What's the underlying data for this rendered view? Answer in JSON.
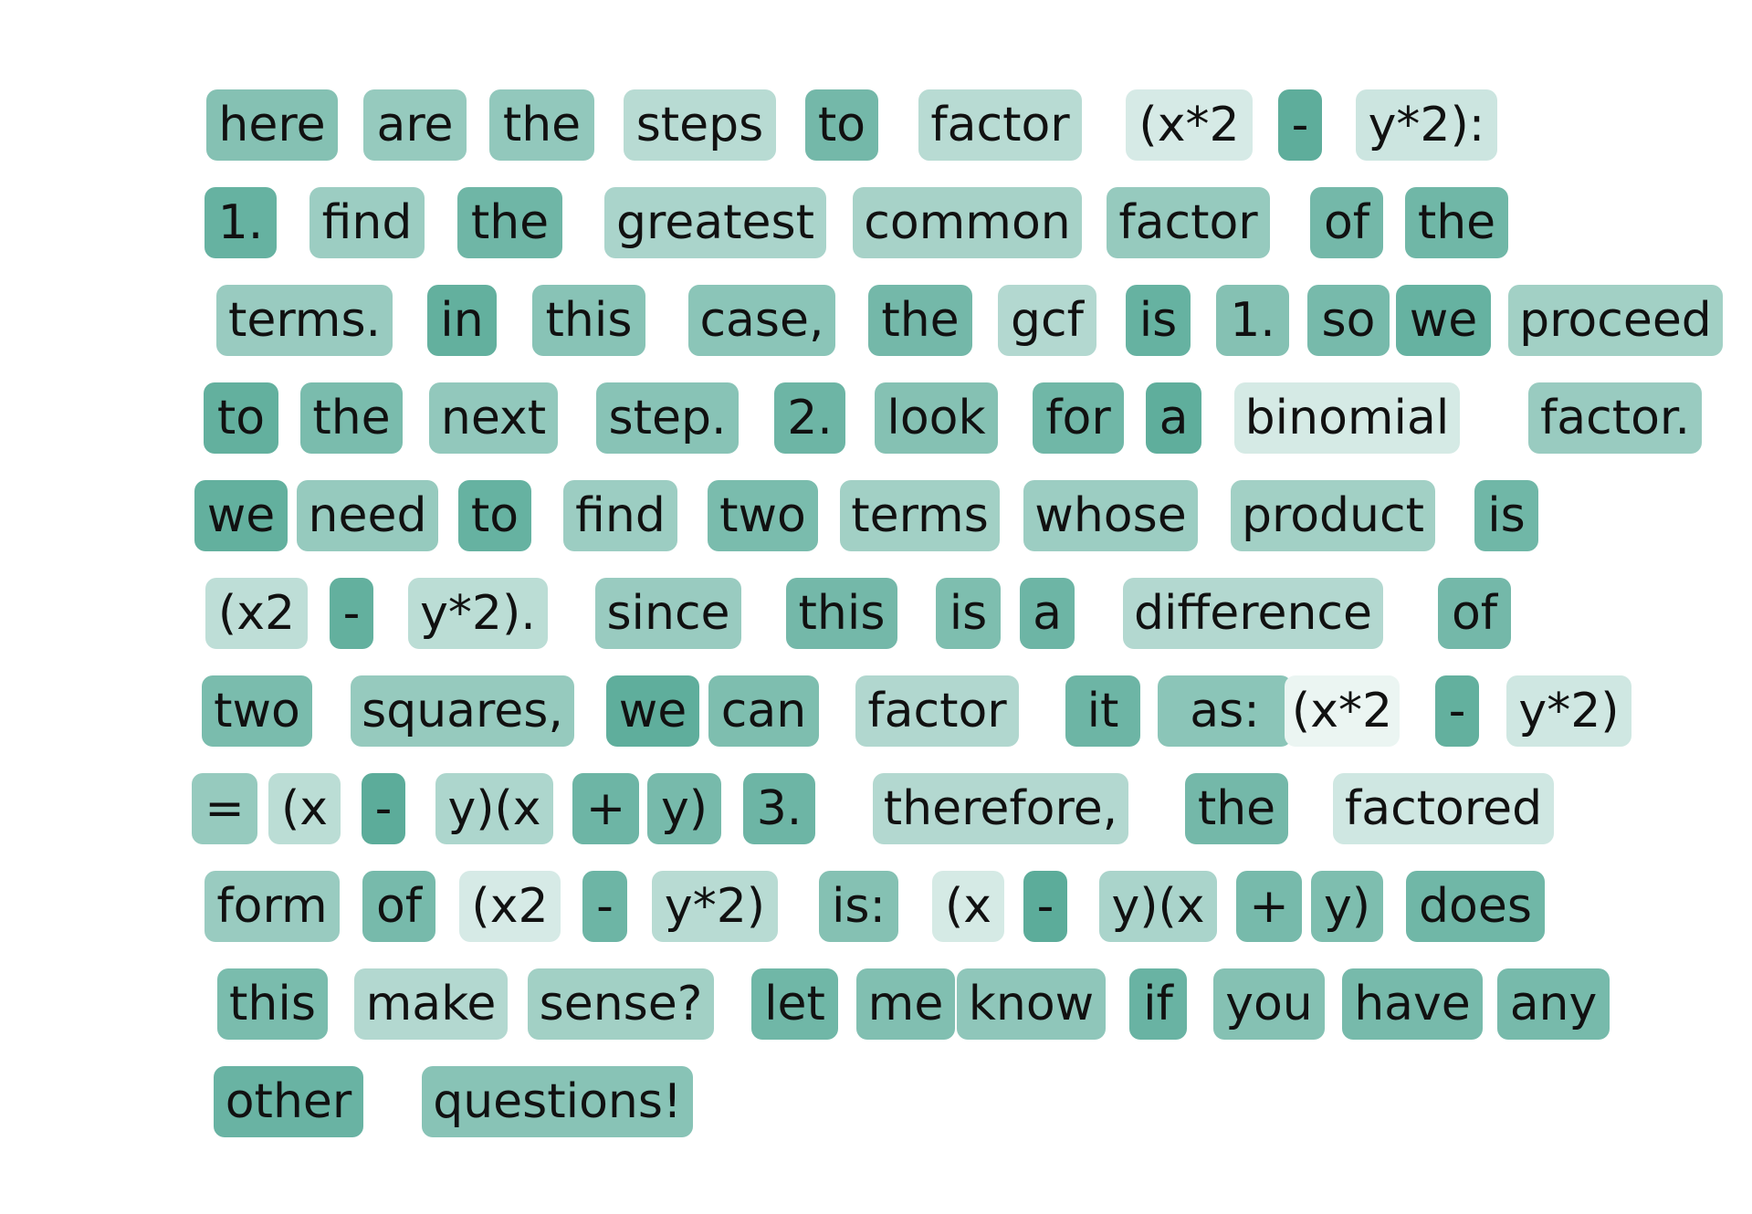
{
  "palette": {
    "base_color": "#55a996",
    "background": "#ffffff"
  },
  "lines": [
    {
      "tokens": [
        {
          "text": "here",
          "weight": 0.72
        },
        {
          "text": "are",
          "weight": 0.62
        },
        {
          "text": "the",
          "weight": 0.64
        },
        {
          "text": "steps",
          "weight": 0.42
        },
        {
          "text": "to",
          "weight": 0.82
        },
        {
          "text": "factor",
          "weight": 0.42
        },
        {
          "text": "(x*2",
          "weight": 0.24
        },
        {
          "text": "-",
          "weight": 0.95
        },
        {
          "text": "y*2):",
          "weight": 0.3
        }
      ]
    },
    {
      "tokens": [
        {
          "text": "1.",
          "weight": 0.9
        },
        {
          "text": "find",
          "weight": 0.58
        },
        {
          "text": "the",
          "weight": 0.85
        },
        {
          "text": "greatest",
          "weight": 0.5
        },
        {
          "text": "common",
          "weight": 0.52
        },
        {
          "text": "factor",
          "weight": 0.62
        },
        {
          "text": "of",
          "weight": 0.82
        },
        {
          "text": "the",
          "weight": 0.84
        }
      ]
    },
    {
      "tokens": [
        {
          "text": "terms.",
          "weight": 0.6
        },
        {
          "text": "in",
          "weight": 0.92
        },
        {
          "text": "this",
          "weight": 0.7
        },
        {
          "text": "case,",
          "weight": 0.68
        },
        {
          "text": "the",
          "weight": 0.82
        },
        {
          "text": "gcf",
          "weight": 0.45
        },
        {
          "text": "is",
          "weight": 0.9
        },
        {
          "text": "1.",
          "weight": 0.72
        },
        {
          "text": "so",
          "weight": 0.8
        },
        {
          "text": "we",
          "weight": 0.9
        },
        {
          "text": "proceed",
          "weight": 0.55
        }
      ]
    },
    {
      "tokens": [
        {
          "text": "to",
          "weight": 0.92
        },
        {
          "text": "the",
          "weight": 0.78
        },
        {
          "text": "next",
          "weight": 0.64
        },
        {
          "text": "step.",
          "weight": 0.7
        },
        {
          "text": "2.",
          "weight": 0.86
        },
        {
          "text": "look",
          "weight": 0.72
        },
        {
          "text": "for",
          "weight": 0.84
        },
        {
          "text": "a",
          "weight": 0.94
        },
        {
          "text": "binomial",
          "weight": 0.25
        },
        {
          "text": "factor.",
          "weight": 0.6
        }
      ]
    },
    {
      "tokens": [
        {
          "text": "we",
          "weight": 0.92
        },
        {
          "text": "need",
          "weight": 0.62
        },
        {
          "text": "to",
          "weight": 0.9
        },
        {
          "text": "find",
          "weight": 0.58
        },
        {
          "text": "two",
          "weight": 0.78
        },
        {
          "text": "terms",
          "weight": 0.55
        },
        {
          "text": "whose",
          "weight": 0.58
        },
        {
          "text": "product",
          "weight": 0.55
        },
        {
          "text": "is",
          "weight": 0.84
        }
      ]
    },
    {
      "tokens": [
        {
          "text": "(x2",
          "weight": 0.38
        },
        {
          "text": "-",
          "weight": 0.92
        },
        {
          "text": "y*2).",
          "weight": 0.4
        },
        {
          "text": "since",
          "weight": 0.6
        },
        {
          "text": "this",
          "weight": 0.82
        },
        {
          "text": "is",
          "weight": 0.76
        },
        {
          "text": "a",
          "weight": 0.86
        },
        {
          "text": "difference",
          "weight": 0.45
        },
        {
          "text": "of",
          "weight": 0.82
        }
      ]
    },
    {
      "tokens": [
        {
          "text": "two",
          "weight": 0.78
        },
        {
          "text": "squares,",
          "weight": 0.62
        },
        {
          "text": "we",
          "weight": 0.94
        },
        {
          "text": "can",
          "weight": 0.76
        },
        {
          "text": "factor",
          "weight": 0.46
        },
        {
          "text": "it",
          "weight": 0.86
        },
        {
          "text": "as:",
          "weight": 0.68
        },
        {
          "text": "(x*2",
          "weight": 0.12
        },
        {
          "text": "-",
          "weight": 0.92
        },
        {
          "text": "y*2)",
          "weight": 0.28
        }
      ]
    },
    {
      "tokens": [
        {
          "text": "=",
          "weight": 0.62
        },
        {
          "text": "(x",
          "weight": 0.4
        },
        {
          "text": "-",
          "weight": 0.96
        },
        {
          "text": "y)(x",
          "weight": 0.48
        },
        {
          "text": "+",
          "weight": 0.86
        },
        {
          "text": "y)",
          "weight": 0.8
        },
        {
          "text": "3.",
          "weight": 0.86
        },
        {
          "text": "therefore,",
          "weight": 0.45
        },
        {
          "text": "the",
          "weight": 0.82
        },
        {
          "text": "factored",
          "weight": 0.28
        }
      ]
    },
    {
      "tokens": [
        {
          "text": "form",
          "weight": 0.6
        },
        {
          "text": "of",
          "weight": 0.8
        },
        {
          "text": "(x2",
          "weight": 0.24
        },
        {
          "text": "-",
          "weight": 0.86
        },
        {
          "text": "y*2)",
          "weight": 0.42
        },
        {
          "text": "is:",
          "weight": 0.72
        },
        {
          "text": "(x",
          "weight": 0.25
        },
        {
          "text": "-",
          "weight": 0.96
        },
        {
          "text": "y)(x",
          "weight": 0.5
        },
        {
          "text": "+",
          "weight": 0.8
        },
        {
          "text": "y)",
          "weight": 0.76
        },
        {
          "text": "does",
          "weight": 0.84
        }
      ]
    },
    {
      "tokens": [
        {
          "text": "this",
          "weight": 0.78
        },
        {
          "text": "make",
          "weight": 0.45
        },
        {
          "text": "sense?",
          "weight": 0.55
        },
        {
          "text": "let",
          "weight": 0.84
        },
        {
          "text": "me",
          "weight": 0.74
        },
        {
          "text": "know",
          "weight": 0.66
        },
        {
          "text": "if",
          "weight": 0.88
        },
        {
          "text": "you",
          "weight": 0.72
        },
        {
          "text": "have",
          "weight": 0.8
        },
        {
          "text": "any",
          "weight": 0.8
        }
      ]
    },
    {
      "tokens": [
        {
          "text": "other",
          "weight": 0.88
        },
        {
          "text": "questions!",
          "weight": 0.7
        }
      ]
    }
  ]
}
